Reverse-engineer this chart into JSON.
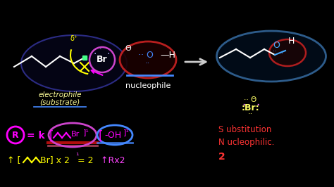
{
  "background_color": "#000000",
  "fig_width": 4.74,
  "fig_height": 2.66,
  "dpi": 100,
  "chain_color": "#ffffff",
  "delta_plus_color": "#ffff00",
  "yellow_arc_color": "#ffff00",
  "br_label_color": "#ffffff",
  "br_circle_color": "#cc44cc",
  "magenta_arrow_color": "#ff00ff",
  "electrophile_oval_edge": "#333399",
  "electrophile_oval_face": "#050518",
  "nuc_oval_edge": "#cc2222",
  "nuc_oval_face": "#1a0000",
  "label_color": "#ffff99",
  "nucleophile_label_color": "#ffffff",
  "oh_label_color": "#ffffff",
  "theta_color": "#ffffff",
  "arrow_color": "#cccccc",
  "prod_oval_edge": "#336699",
  "prod_oval_face": "#020d1a",
  "prod_oh_oval_edge": "#cc2222",
  "prod_oh_oval_face": "#1a0505",
  "prod_chain_color": "#ffffff",
  "prod_o_color": "#44aaff",
  "br_product_color": "#ffff66",
  "br_product_dot_color": "#ff88ff",
  "rate_color": "#ff00ff",
  "rate_r_circle_color": "#ff00ff",
  "rate_br_circle_color": "#cc44cc",
  "rate_oh_oval_color": "#4488ff",
  "rate_underline_color": "#cc2222",
  "bottom_color": "#ffff00",
  "bottom_arrow_color": "#ff44ff",
  "sn2_color": "#ff3333",
  "electrophile_label": "electrophile",
  "substrate_label": "(substrate)",
  "nucleophile_label": "nucleophile",
  "SN2_S": "S ubstitution",
  "SN2_N": "N ucleophilic.",
  "SN2_2": "2"
}
